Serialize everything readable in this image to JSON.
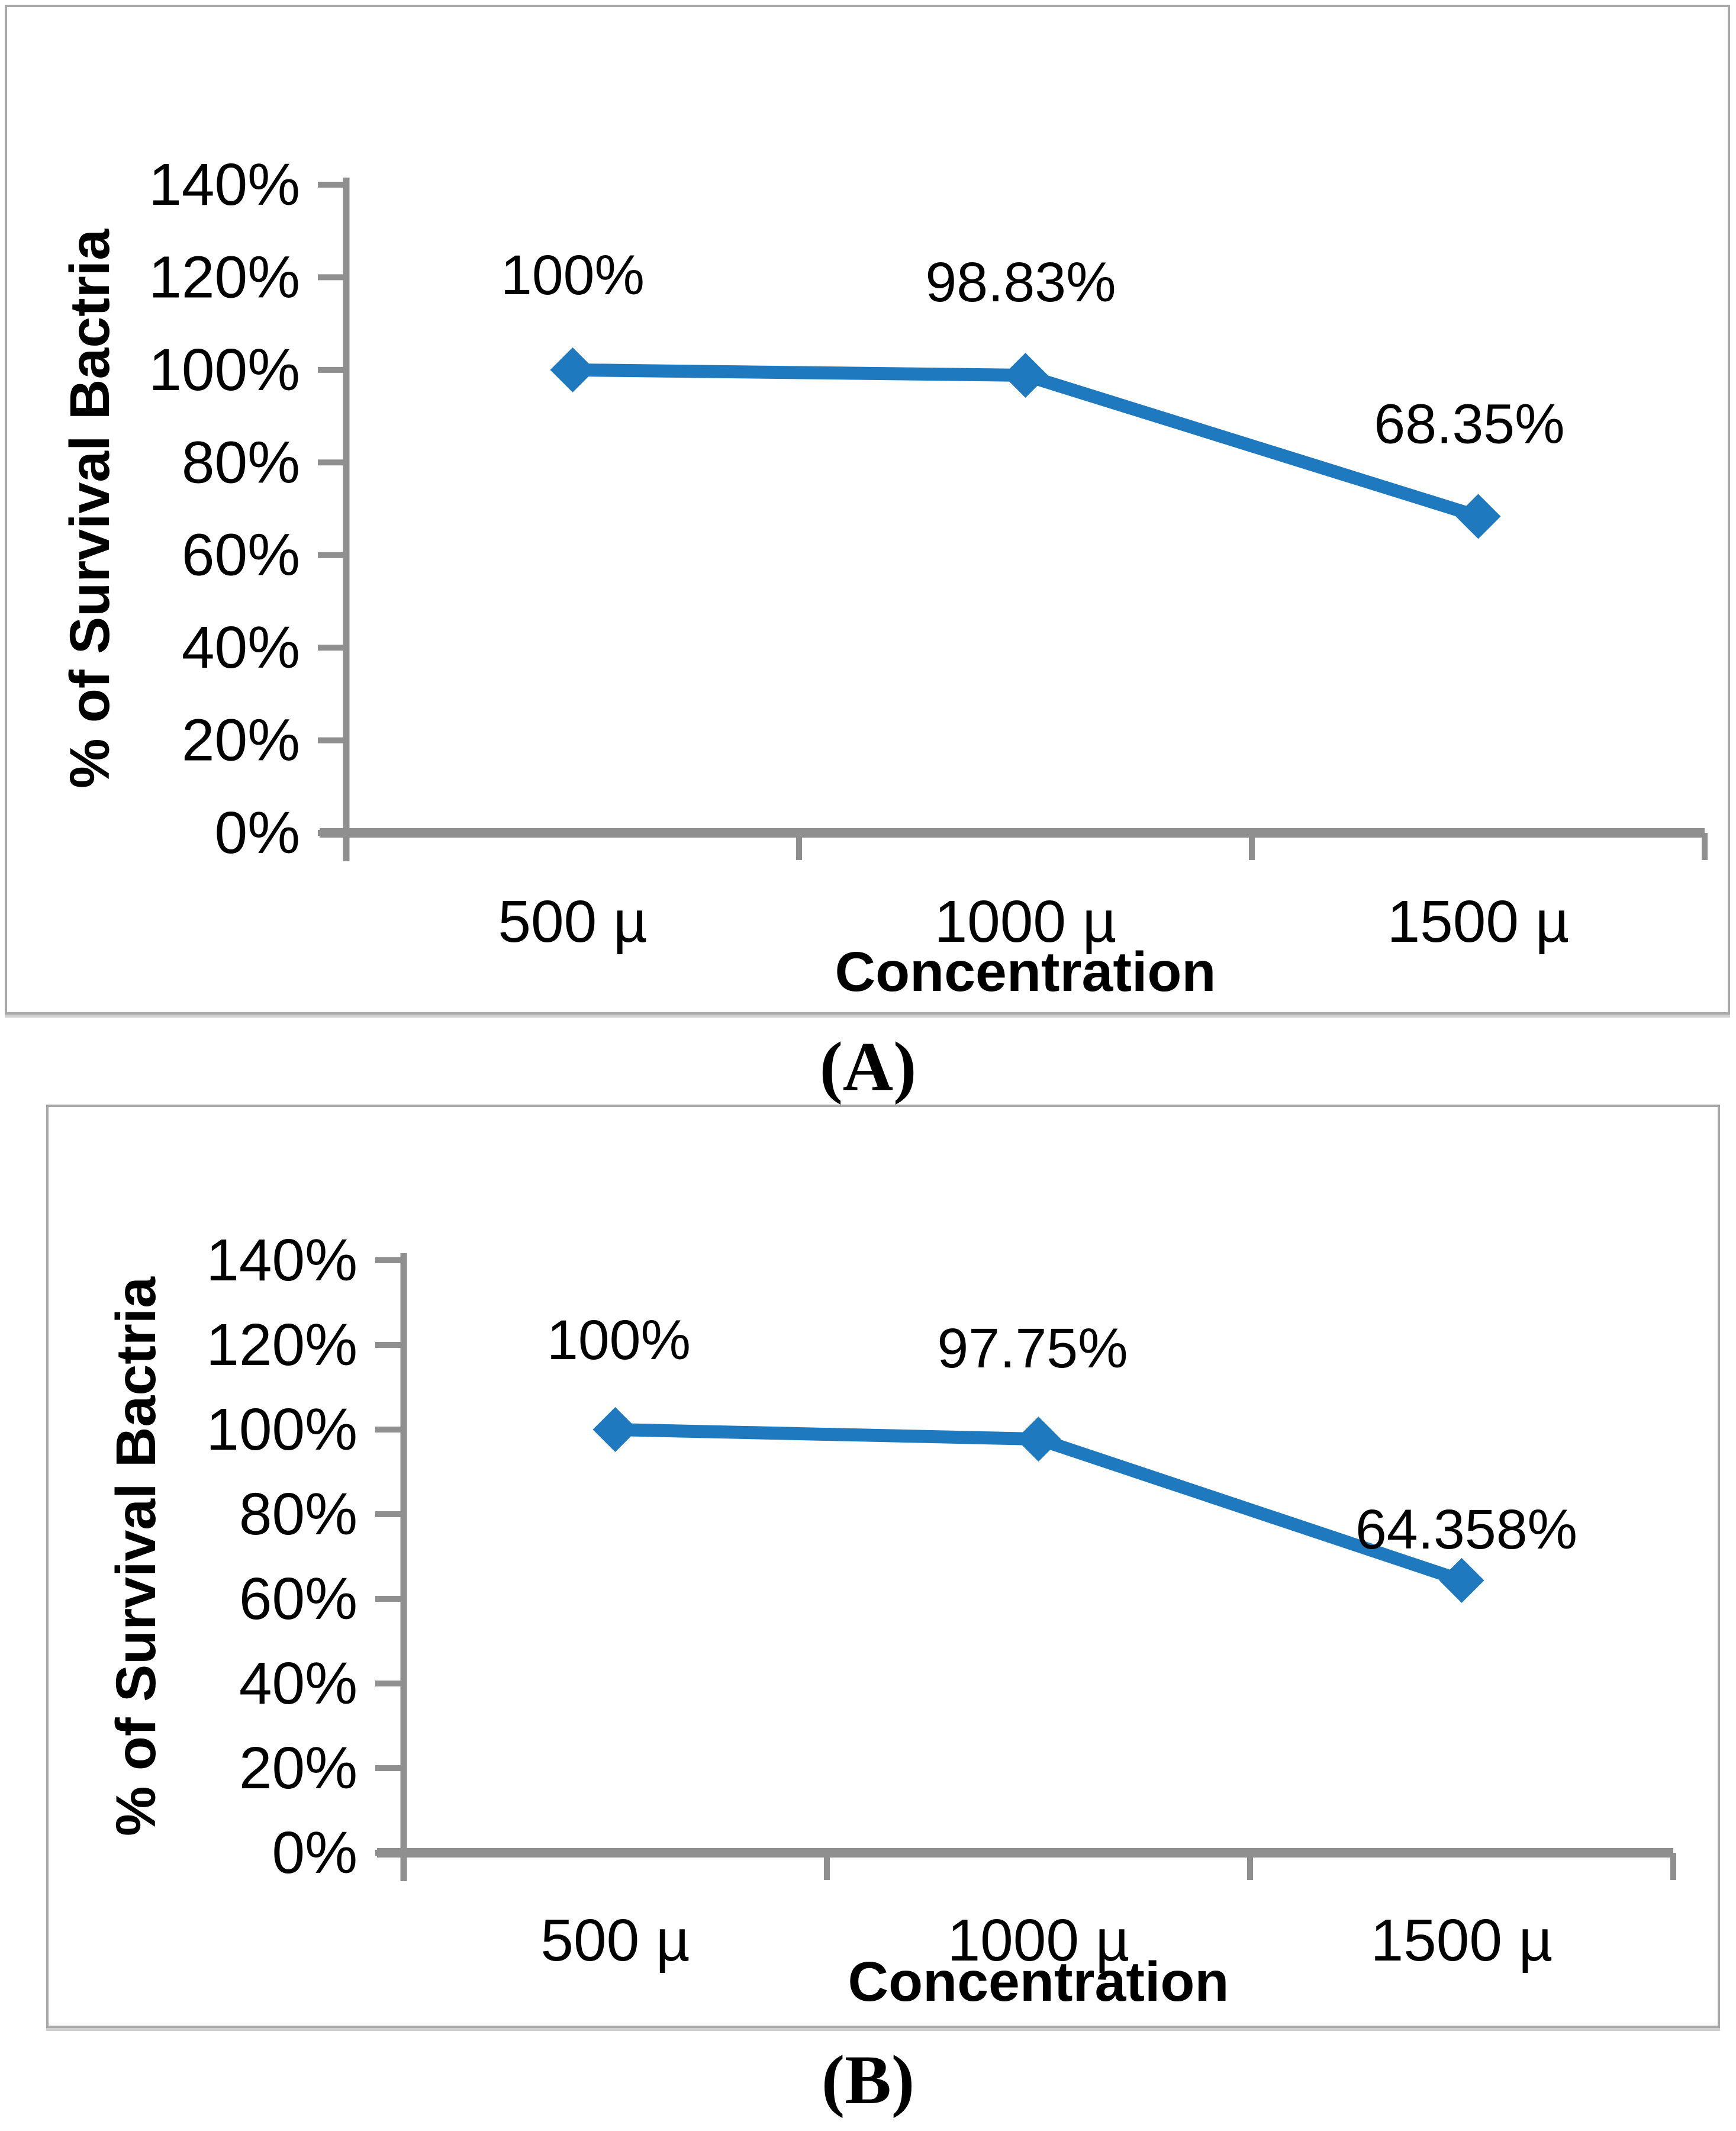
{
  "figure": {
    "captions": {
      "a": "(A)",
      "b": "(B)"
    }
  },
  "colors": {
    "line": "#1e79be",
    "marker": "#1e79be",
    "axis": "#8f8f8f",
    "panel_border": "#a9a9a9",
    "text": "#000000"
  },
  "chart_data": [
    {
      "id": "a",
      "type": "line",
      "title": "",
      "xlabel": "Concentration",
      "ylabel": "% of Survival Bactria",
      "categories": [
        "500 µ",
        "1000 µ",
        "1500 µ"
      ],
      "series": [
        {
          "values": [
            100,
            98.83,
            68.35
          ]
        }
      ],
      "point_labels": [
        "100%",
        "98.83%",
        "68.35%"
      ],
      "y_ticks": [
        "0%",
        "20%",
        "40%",
        "60%",
        "80%",
        "100%",
        "120%",
        "140%"
      ],
      "ylim": [
        0,
        140
      ],
      "grid": false,
      "legend": "none",
      "marker": "diamond"
    },
    {
      "id": "b",
      "type": "line",
      "title": "",
      "xlabel": "Concentration",
      "ylabel": "% of Survival Bactria",
      "categories": [
        "500 µ",
        "1000 µ",
        "1500 µ"
      ],
      "series": [
        {
          "values": [
            100,
            97.75,
            64.358
          ]
        }
      ],
      "point_labels": [
        "100%",
        "97.75%",
        "64.358%"
      ],
      "y_ticks": [
        "0%",
        "20%",
        "40%",
        "60%",
        "80%",
        "100%",
        "120%",
        "140%"
      ],
      "ylim": [
        0,
        140
      ],
      "grid": false,
      "legend": "none",
      "marker": "diamond"
    }
  ]
}
